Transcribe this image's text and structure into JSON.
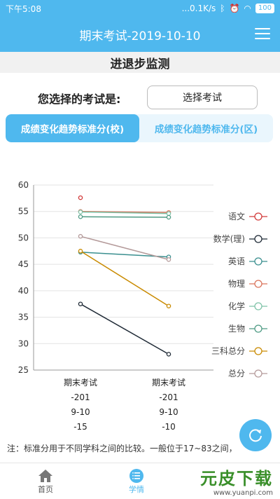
{
  "status_bar": {
    "time": "下午5:08",
    "net": "...0.1K/s",
    "battery": "100"
  },
  "app_bar": {
    "title": "期末考试-2019-10-10"
  },
  "section": {
    "title": "进退步监测"
  },
  "select": {
    "label": "您选择的考试是:",
    "button_label": "选择考试"
  },
  "tabs": [
    {
      "label": "成绩变化趋势标准分(校)",
      "active": true
    },
    {
      "label": "成绩变化趋势标准分(区)",
      "active": false
    }
  ],
  "chart_data": {
    "type": "line",
    "x": [
      "期末考试\n-201\n9-10\n-15",
      "期末考试\n-201\n9-10\n-10"
    ],
    "ylim": [
      25,
      60
    ],
    "yticks": [
      25,
      30,
      35,
      40,
      45,
      50,
      55,
      60
    ],
    "series": [
      {
        "name": "语文",
        "color": "#d23a3a",
        "values": [
          57.6,
          null
        ]
      },
      {
        "name": "数学(理)",
        "color": "#1f2a36",
        "values": [
          37.5,
          28.0
        ]
      },
      {
        "name": "英语",
        "color": "#3a8f8f",
        "values": [
          47.3,
          46.4
        ]
      },
      {
        "name": "物理",
        "color": "#d9735a",
        "values": [
          55.0,
          54.8
        ]
      },
      {
        "name": "化学",
        "color": "#7fc3a8",
        "values": [
          54.9,
          54.6
        ]
      },
      {
        "name": "生物",
        "color": "#4e9b84",
        "values": [
          54.0,
          53.9
        ]
      },
      {
        "name": "三科总分",
        "color": "#c98a00",
        "values": [
          47.5,
          37.1
        ]
      },
      {
        "name": "总分",
        "color": "#b49a9a",
        "values": [
          50.3,
          45.9
        ]
      }
    ]
  },
  "note": {
    "text": "注：标准分用于不同学科之间的比较。一般位于17~83之间，"
  },
  "bottom_nav": [
    {
      "label": "首页",
      "icon": "home-icon",
      "active": false
    },
    {
      "label": "学情",
      "icon": "list-icon",
      "active": true
    }
  ],
  "watermark": {
    "big": "元皮下载",
    "small": "www.yuanpi.com"
  }
}
